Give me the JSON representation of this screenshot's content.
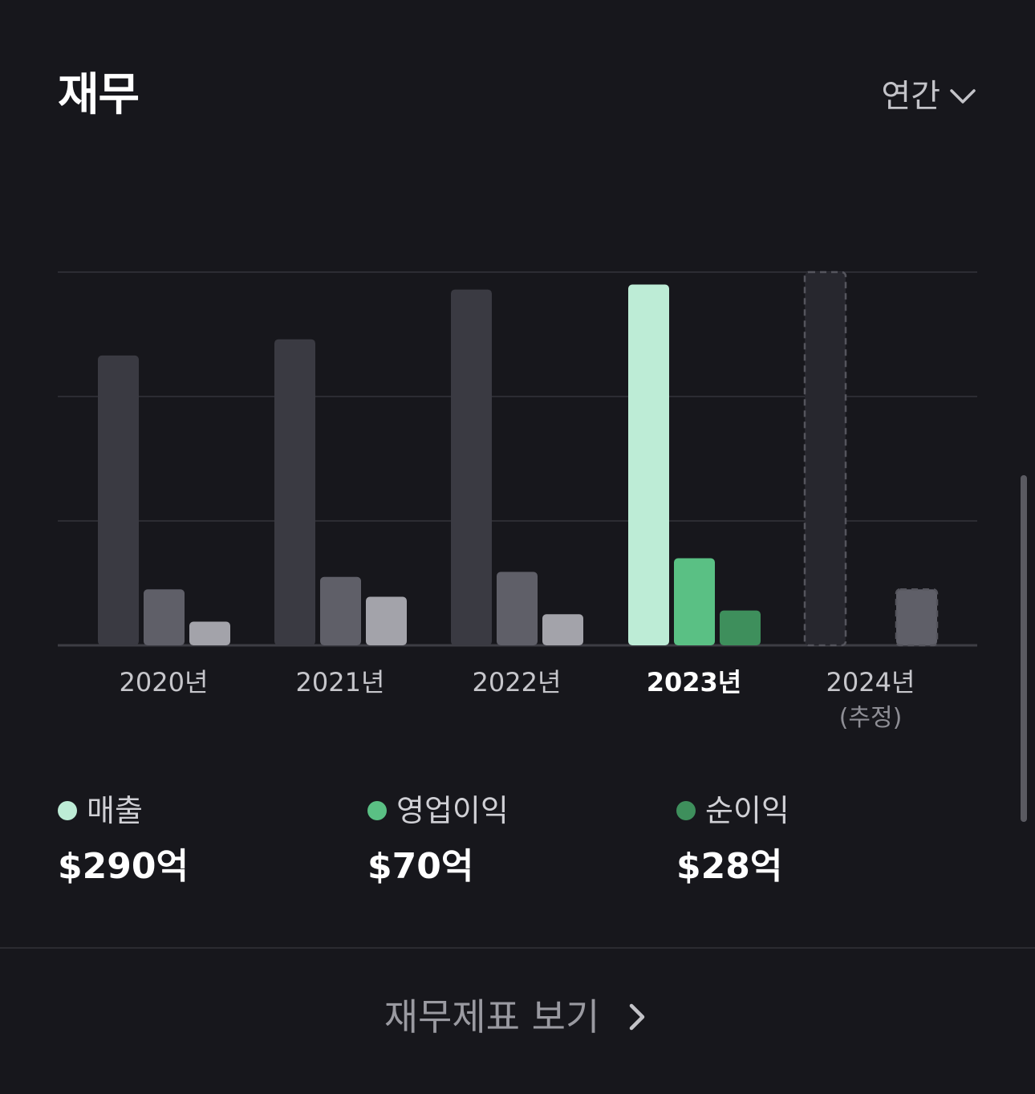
{
  "header": {
    "title": "재무",
    "period_label": "연간"
  },
  "colors": {
    "background": "#17171c",
    "revenue_active": "#bdecd6",
    "operating_active": "#5ac084",
    "net_active": "#3e8f5c",
    "bar_dark": "#3a3a42",
    "bar_mid": "#5f5f68",
    "bar_light": "#a3a3aa",
    "estimate_fill": "#27272e",
    "estimate_stroke": "#55555d"
  },
  "chart_data": {
    "type": "bar",
    "categories": [
      "2020년",
      "2021년",
      "2022년",
      "2023년",
      "2024년"
    ],
    "category_notes": [
      "",
      "",
      "",
      "",
      "(추정)"
    ],
    "selected_index": 3,
    "estimated_index": 4,
    "ylim": [
      0,
      300
    ],
    "grid": true,
    "series": [
      {
        "name": "매출",
        "values": [
          233,
          246,
          286,
          290,
          300
        ]
      },
      {
        "name": "영업이익",
        "values": [
          45,
          55,
          59,
          70,
          null
        ]
      },
      {
        "name": "순이익",
        "values": [
          19,
          39,
          25,
          28,
          45
        ]
      }
    ]
  },
  "legend": [
    {
      "label": "매출",
      "value": "$290억",
      "color": "#bdecd6"
    },
    {
      "label": "영업이익",
      "value": "$70억",
      "color": "#5ac084"
    },
    {
      "label": "순이익",
      "value": "$28억",
      "color": "#3e8f5c"
    }
  ],
  "footer": {
    "link_label": "재무제표 보기"
  }
}
